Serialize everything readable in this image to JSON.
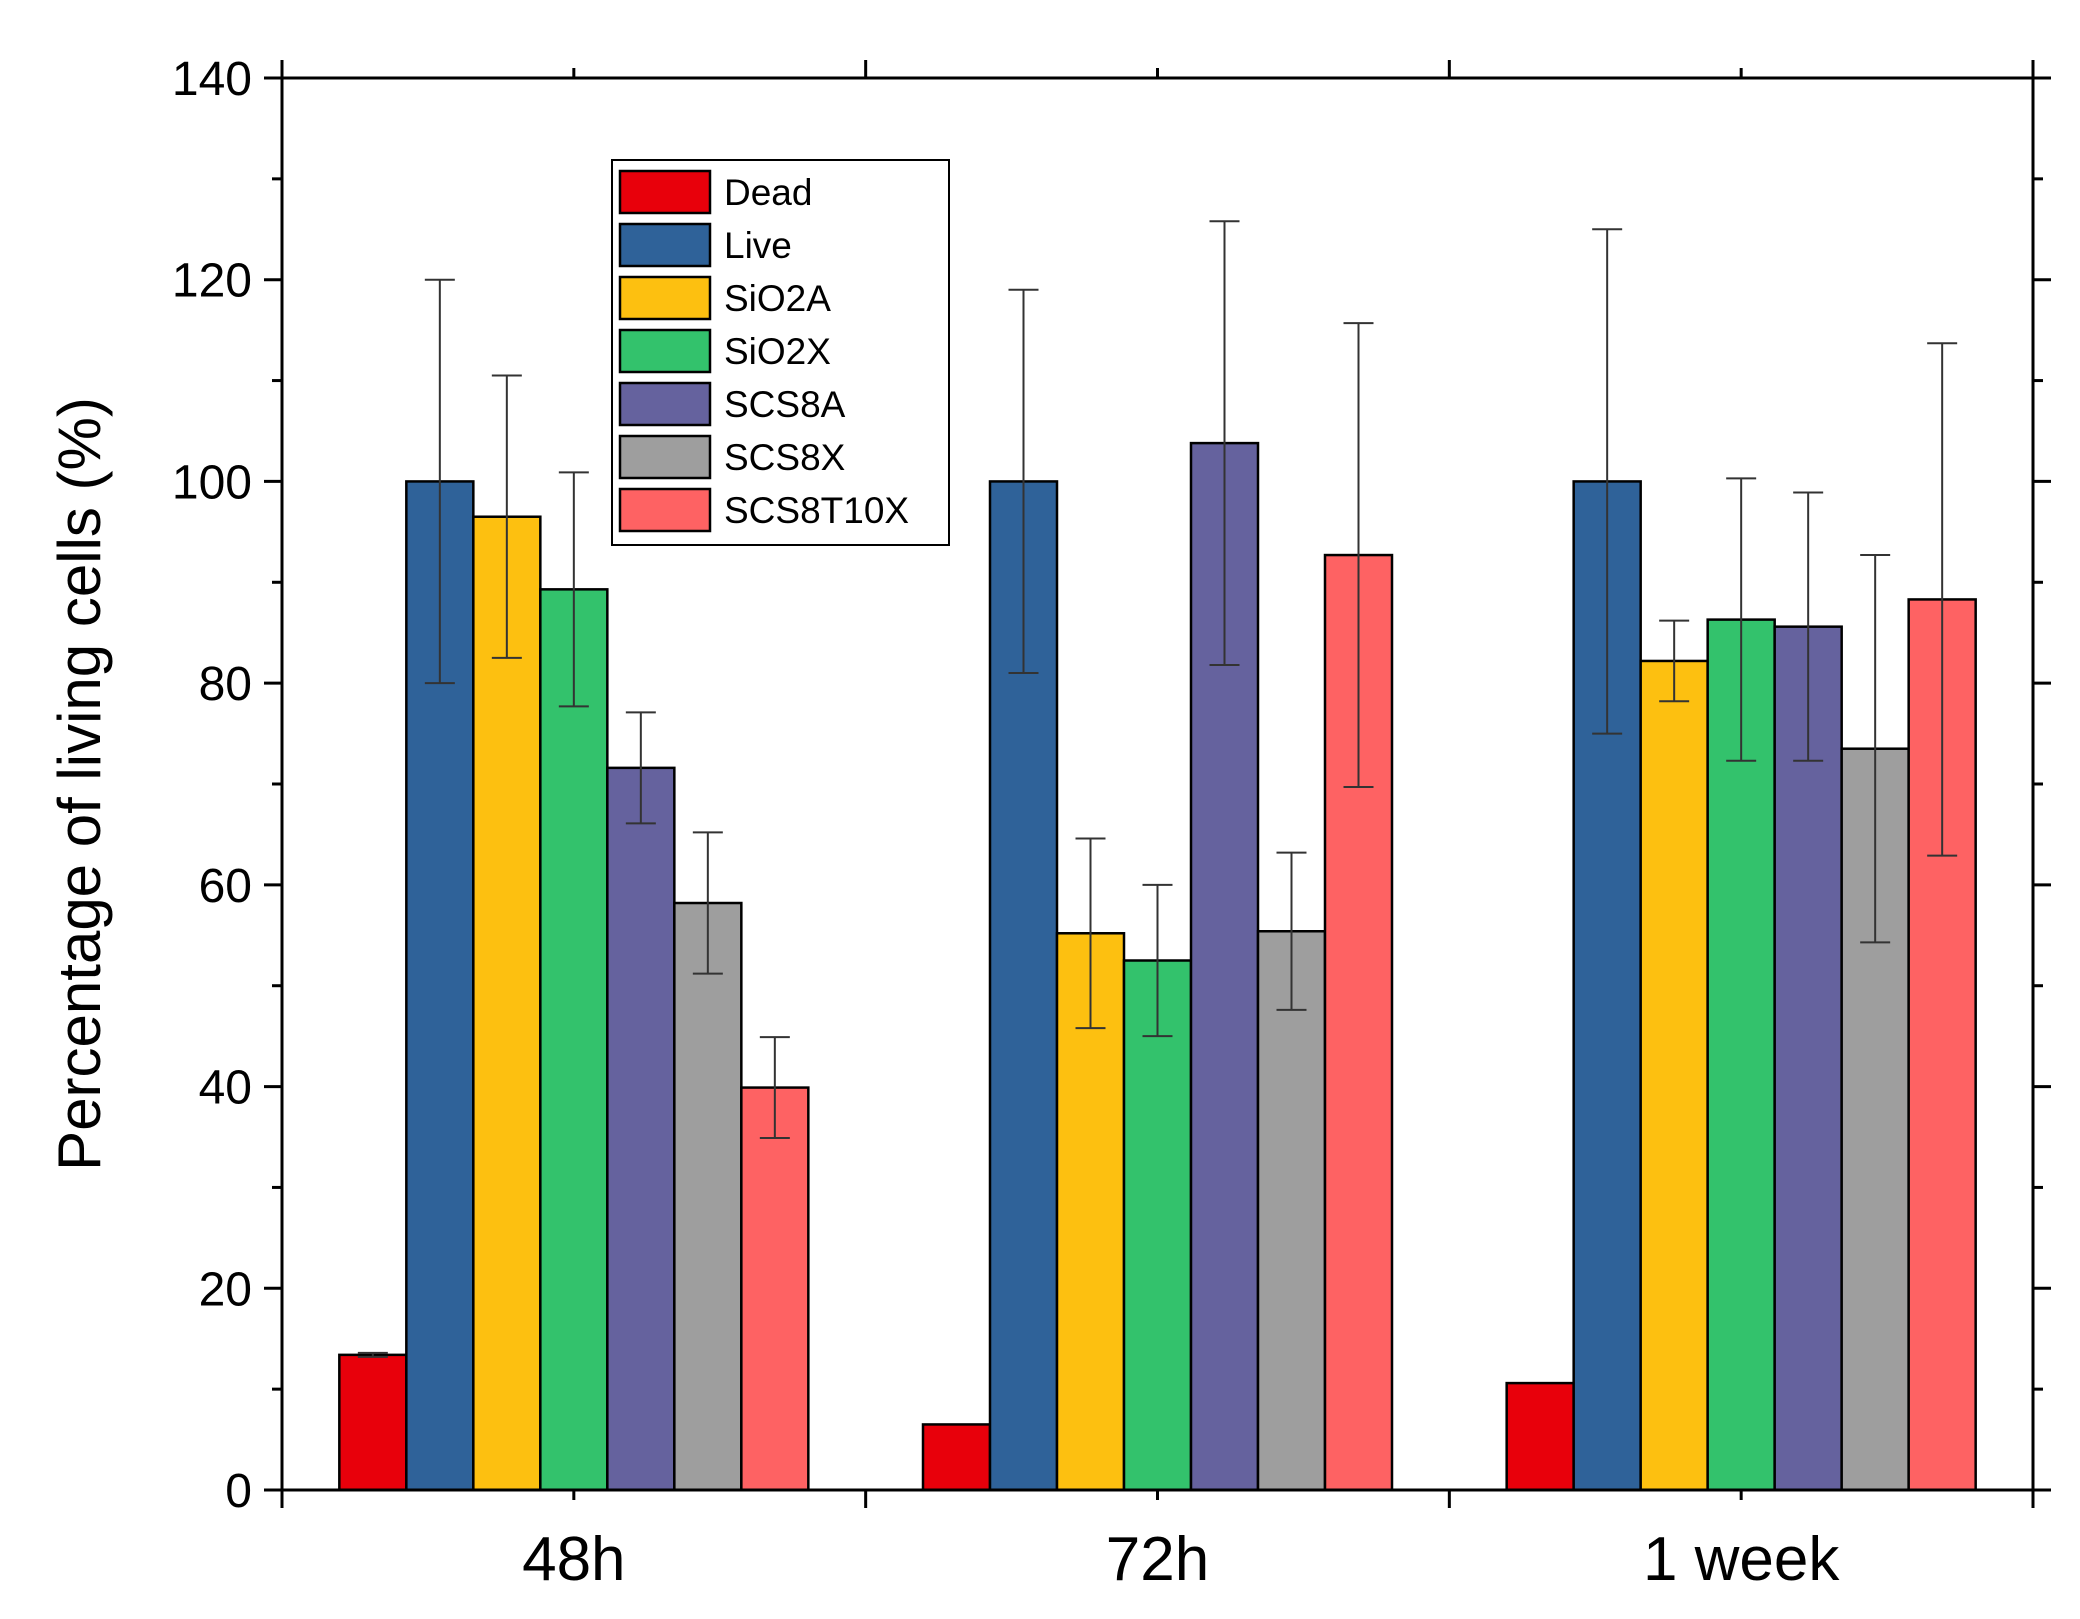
{
  "chart_data": {
    "type": "bar",
    "ylabel": "Percentage of living cells (%)",
    "xlabel": "",
    "ylim": [
      0,
      140
    ],
    "yticks": [
      0,
      20,
      40,
      60,
      80,
      100,
      120,
      140
    ],
    "categories": [
      "48h",
      "72h",
      "1 week"
    ],
    "legend_position": "top-left",
    "grid": false,
    "series": [
      {
        "name": "Dead",
        "color": "#e8000b",
        "values": [
          13.4,
          6.5,
          10.6
        ],
        "errors": [
          0.2,
          0,
          0
        ]
      },
      {
        "name": "Live",
        "color": "#2f6299",
        "values": [
          100,
          100,
          100
        ],
        "errors": [
          20,
          19,
          25
        ]
      },
      {
        "name": "SiO2A",
        "color": "#fdc010",
        "values": [
          96.5,
          55.2,
          82.2
        ],
        "errors": [
          14,
          9.4,
          4
        ]
      },
      {
        "name": "SiO2X",
        "color": "#33c26c",
        "values": [
          89.3,
          52.5,
          86.3
        ],
        "errors": [
          11.6,
          7.5,
          14
        ]
      },
      {
        "name": "SCS8A",
        "color": "#65629e",
        "values": [
          71.6,
          103.8,
          85.6
        ],
        "errors": [
          5.5,
          22,
          13.3
        ]
      },
      {
        "name": "SCS8X",
        "color": "#9e9e9e",
        "values": [
          58.2,
          55.4,
          73.5
        ],
        "errors": [
          7,
          7.8,
          19.2
        ]
      },
      {
        "name": "SCS8T10X",
        "color": "#fe6263",
        "values": [
          39.9,
          92.7,
          88.3
        ],
        "errors": [
          5,
          23,
          25.4
        ]
      }
    ]
  }
}
